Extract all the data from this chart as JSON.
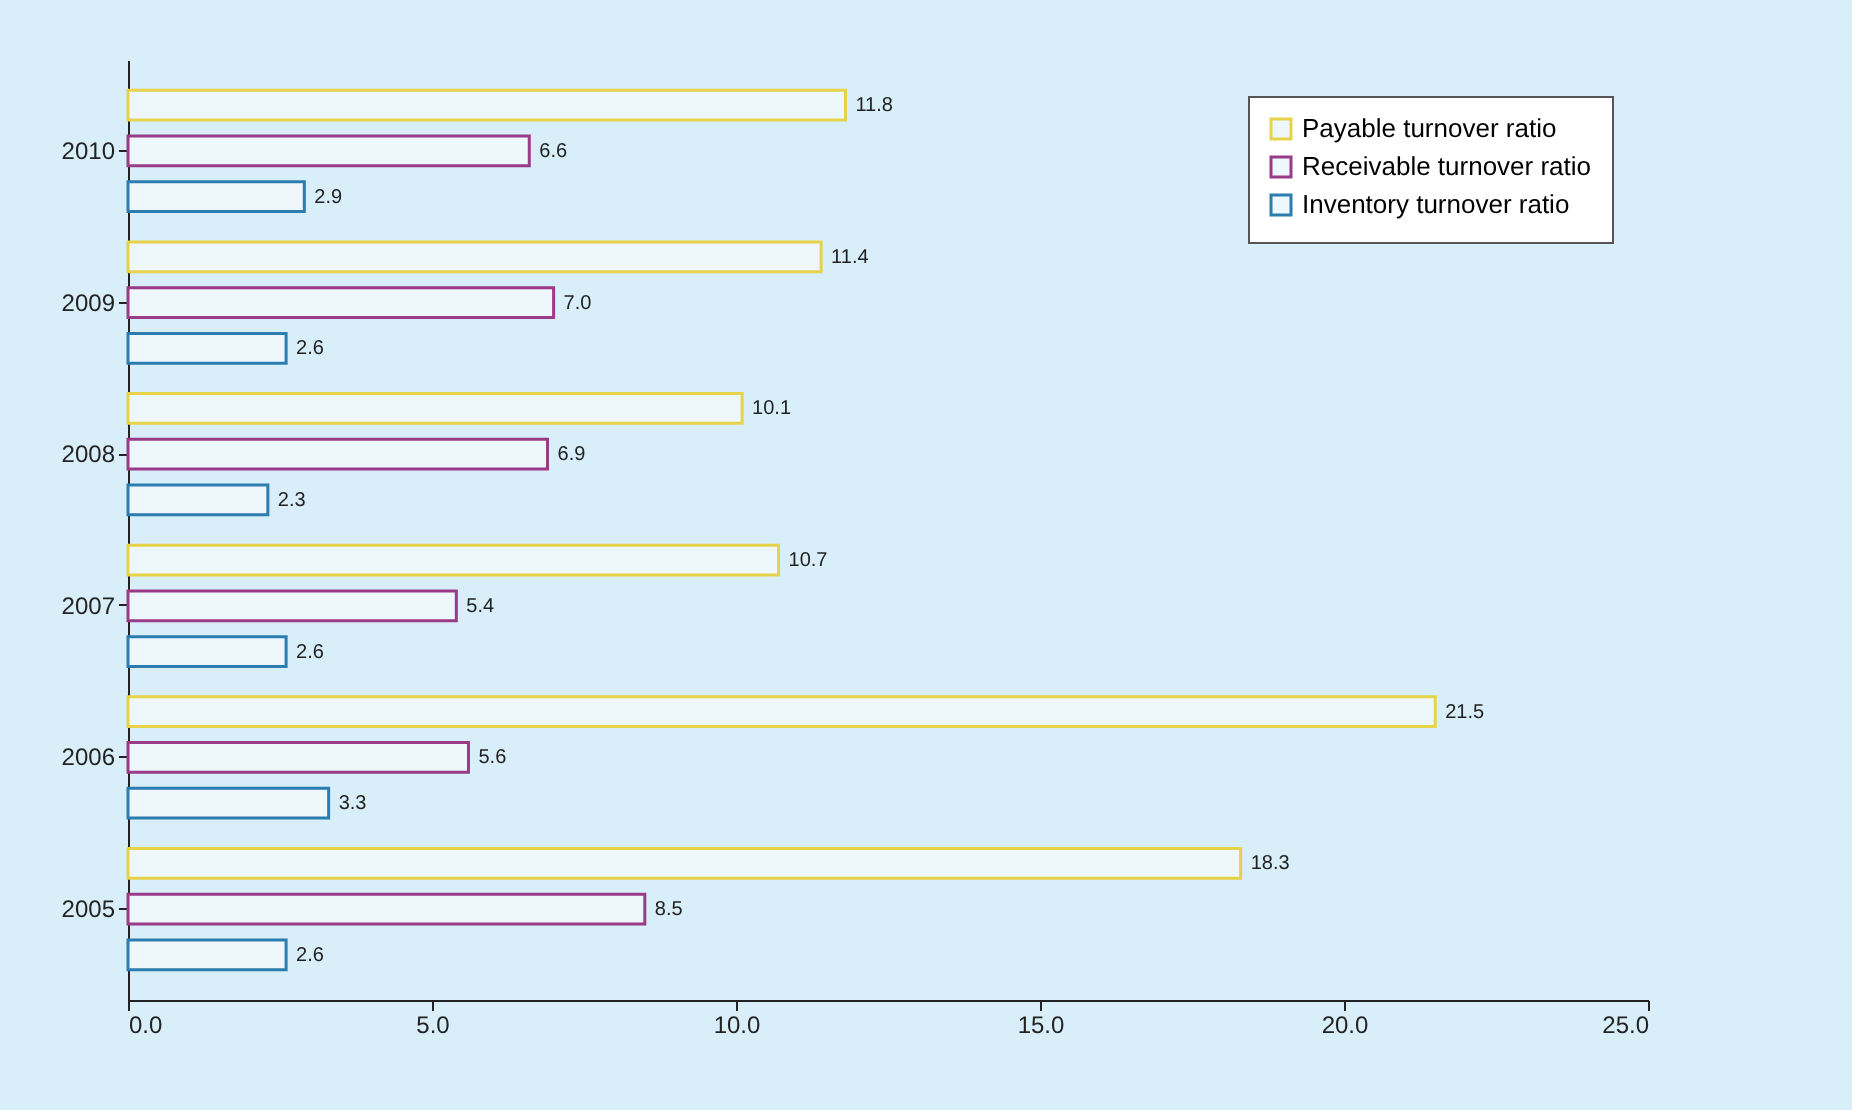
{
  "chart_data": {
    "type": "bar",
    "orientation": "horizontal",
    "categories": [
      "2010",
      "2009",
      "2008",
      "2007",
      "2006",
      "2005"
    ],
    "series": [
      {
        "name": "Payable turnover ratio",
        "color": "#e6d34a",
        "values": [
          11.8,
          11.4,
          10.1,
          10.7,
          21.5,
          18.3
        ],
        "value_labels": [
          "11.8",
          "11.4",
          "10.1",
          "10.7",
          "21.5",
          "18.3"
        ]
      },
      {
        "name": "Receivable turnover ratio",
        "color": "#9a3b87",
        "values": [
          6.6,
          7.0,
          6.9,
          5.4,
          5.6,
          8.5
        ],
        "value_labels": [
          "6.6",
          "7.0",
          "6.9",
          "5.4",
          "5.6",
          "8.5"
        ]
      },
      {
        "name": "Inventory turnover ratio",
        "color": "#2b7db0",
        "values": [
          2.9,
          2.6,
          2.3,
          2.6,
          3.3,
          2.6
        ],
        "value_labels": [
          "2.9",
          "2.6",
          "2.3",
          "2.6",
          "3.3",
          "2.6"
        ]
      }
    ],
    "xlim": [
      0,
      25
    ],
    "xticks": [
      {
        "value": 0,
        "label": "0.0"
      },
      {
        "value": 5,
        "label": "5.0"
      },
      {
        "value": 10,
        "label": "10.0"
      },
      {
        "value": 15,
        "label": "15.0"
      },
      {
        "value": 20,
        "label": "20.0"
      },
      {
        "value": 25,
        "label": "25.0"
      }
    ],
    "grid": false,
    "legend": "top right"
  }
}
